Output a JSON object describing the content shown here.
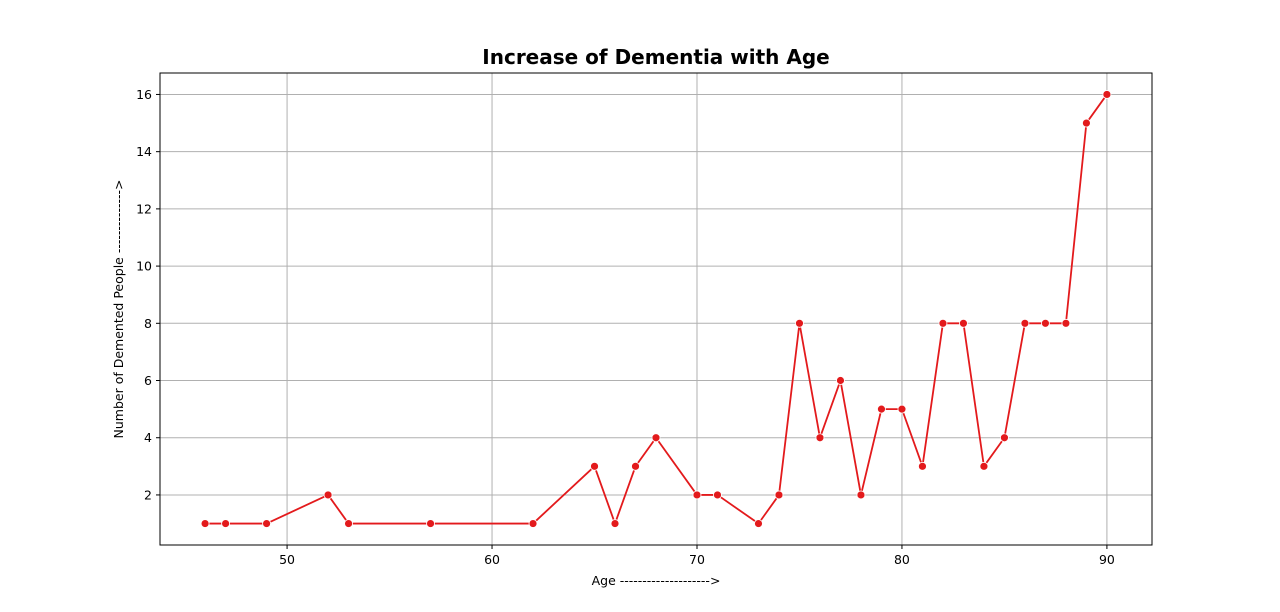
{
  "chart_data": {
    "type": "line",
    "title": "Increase of Dementia with Age",
    "xlabel": "Age -------------------->",
    "ylabel": "Number of Demented People -------------->",
    "xlim": [
      43.8,
      92.2
    ],
    "ylim": [
      0.25,
      16.75
    ],
    "xticks": [
      50,
      60,
      70,
      80,
      90
    ],
    "yticks": [
      2,
      4,
      6,
      8,
      10,
      12,
      14,
      16
    ],
    "grid": true,
    "series": [
      {
        "color": "#e31a1c",
        "marker": "circle",
        "x": [
          46,
          47,
          49,
          52,
          53,
          57,
          62,
          65,
          66,
          67,
          68,
          70,
          71,
          73,
          74,
          75,
          76,
          77,
          78,
          79,
          80,
          81,
          82,
          83,
          84,
          85,
          86,
          87,
          88,
          89,
          90
        ],
        "values": [
          1,
          1,
          1,
          2,
          1,
          1,
          1,
          3,
          1,
          3,
          4,
          2,
          2,
          1,
          2,
          8,
          4,
          6,
          2,
          5,
          5,
          3,
          8,
          8,
          3,
          4,
          8,
          8,
          8,
          15,
          16
        ]
      }
    ]
  }
}
